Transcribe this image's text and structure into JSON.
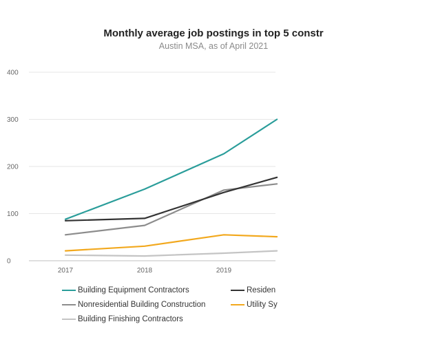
{
  "chart_data": {
    "type": "line",
    "title": "Monthly average job postings in top 5 constr",
    "subtitle": "Austin MSA, as of April 2021",
    "xlabel": "",
    "ylabel": "",
    "x": [
      "2017",
      "2018",
      "2019"
    ],
    "ylim": [
      0,
      400
    ],
    "yticks": [
      "0",
      "100",
      "200",
      "300",
      "400"
    ],
    "grid": true,
    "legend_position": "bottom",
    "series": [
      {
        "name": "Building Equipment Contractors",
        "color": "#2a9d9a",
        "x": [
          2017,
          2018,
          2019,
          2019.67
        ],
        "values": [
          88,
          152,
          227,
          300
        ]
      },
      {
        "name": "Residen",
        "color": "#333333",
        "x": [
          2017,
          2018,
          2019,
          2019.67
        ],
        "values": [
          85,
          90,
          145,
          177
        ]
      },
      {
        "name": "Nonresidential Building Construction",
        "color": "#8c8c8c",
        "x": [
          2017,
          2018,
          2019,
          2019.67
        ],
        "values": [
          55,
          75,
          150,
          163
        ]
      },
      {
        "name": "Utility Sy",
        "color": "#f2a81d",
        "x": [
          2017,
          2018,
          2019,
          2019.67
        ],
        "values": [
          21,
          31,
          55,
          51
        ]
      },
      {
        "name": "Building Finishing Contractors",
        "color": "#c4c4c4",
        "x": [
          2017,
          2018,
          2019,
          2019.67
        ],
        "values": [
          12,
          10,
          16,
          21
        ]
      }
    ]
  }
}
